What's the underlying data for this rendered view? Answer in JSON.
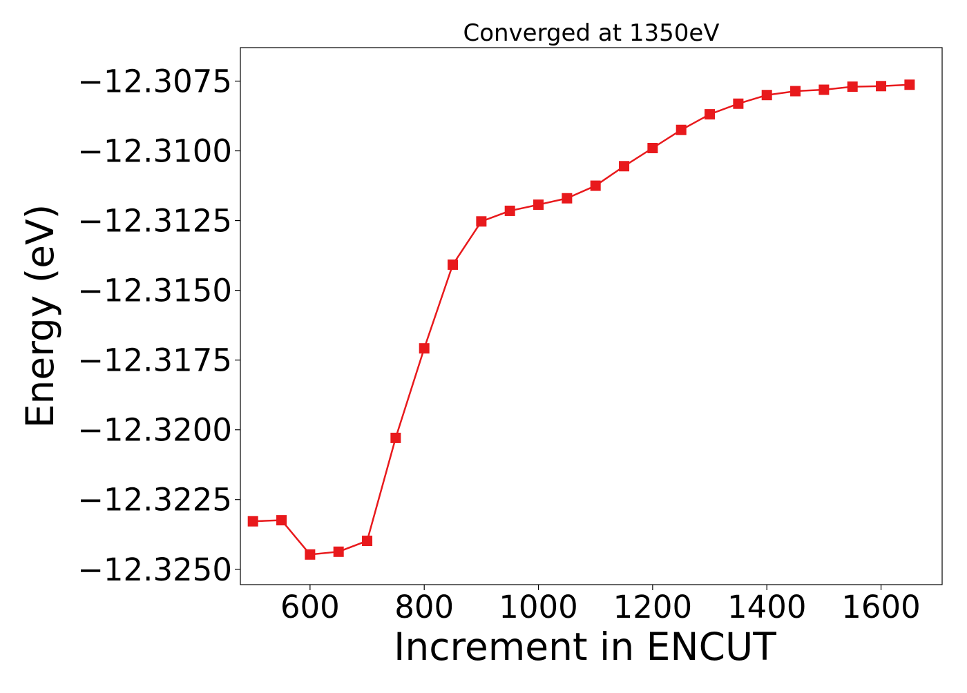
{
  "chart_data": {
    "type": "line",
    "title": "Converged at 1350eV",
    "xlabel": "Increment in ENCUT",
    "ylabel": "Energy (eV)",
    "x": [
      500,
      550,
      600,
      650,
      700,
      750,
      800,
      850,
      900,
      950,
      1000,
      1050,
      1100,
      1150,
      1200,
      1250,
      1300,
      1350,
      1400,
      1450,
      1500,
      1550,
      1600,
      1650
    ],
    "series": [
      {
        "values": [
          -12.32328,
          -12.32324,
          -12.32447,
          -12.32437,
          -12.32398,
          -12.32029,
          -12.31708,
          -12.31408,
          -12.31253,
          -12.31215,
          -12.31193,
          -12.3117,
          -12.31125,
          -12.31055,
          -12.3099,
          -12.30925,
          -12.30869,
          -12.30831,
          -12.308,
          -12.30786,
          -12.30781,
          -12.3077,
          -12.30768,
          -12.30763
        ],
        "color": "#e8191c",
        "marker": "square"
      }
    ],
    "xlim": [
      478,
      1707
    ],
    "ylim": [
      -12.32555,
      -12.3063
    ],
    "xticks": [
      600,
      800,
      1000,
      1200,
      1400,
      1600
    ],
    "xtick_labels": [
      "600",
      "800",
      "1000",
      "1200",
      "1400",
      "1600"
    ],
    "yticks": [
      -12.3075,
      -12.31,
      -12.3125,
      -12.315,
      -12.3175,
      -12.32,
      -12.3225,
      -12.325
    ],
    "ytick_labels": [
      "−12.3075",
      "−12.3100",
      "−12.3125",
      "−12.3150",
      "−12.3175",
      "−12.3200",
      "−12.3225",
      "−12.3250"
    ],
    "grid": false,
    "legend": "none"
  }
}
